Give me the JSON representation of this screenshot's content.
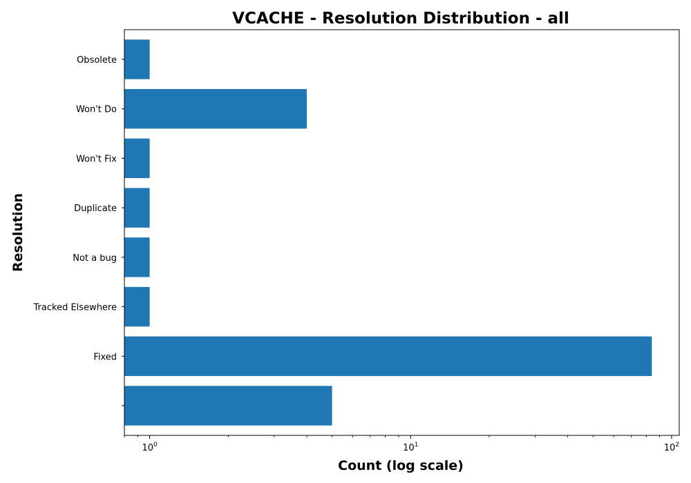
{
  "chart_data": {
    "type": "bar",
    "orientation": "horizontal",
    "title": "VCACHE - Resolution Distribution - all",
    "xlabel": "Count (log scale)",
    "ylabel": "Resolution",
    "x_scale": "log",
    "xlim": [
      0.8,
      107
    ],
    "x_ticks": [
      {
        "base": "10",
        "exp": "0",
        "value": 1
      },
      {
        "base": "10",
        "exp": "1",
        "value": 10
      },
      {
        "base": "10",
        "exp": "2",
        "value": 100
      }
    ],
    "categories": [
      "",
      "Fixed",
      "Tracked Elsewhere",
      "Not a bug",
      "Duplicate",
      "Won't Fix",
      "Won't Do",
      "Obsolete"
    ],
    "values": [
      5,
      84,
      1,
      1,
      1,
      1,
      4,
      1
    ],
    "bar_color": "#1f77b4",
    "grid": false,
    "legend": "none"
  }
}
